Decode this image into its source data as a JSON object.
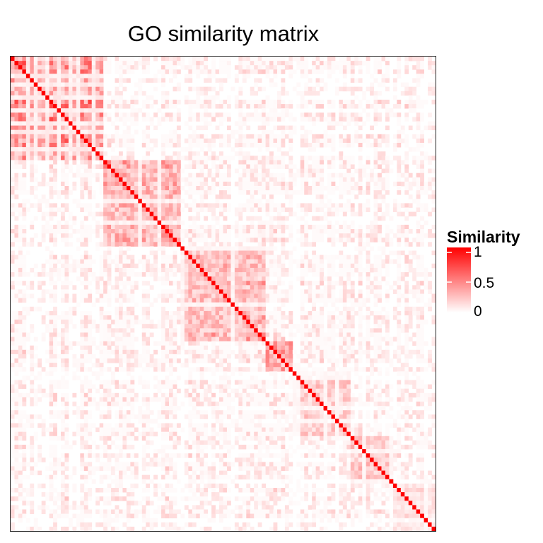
{
  "title": "GO similarity matrix",
  "chart_data": {
    "type": "heatmap",
    "title": "GO similarity matrix",
    "xlabel": "",
    "ylabel": "",
    "value_range": [
      0,
      1
    ],
    "color_low": "#ffffff",
    "color_high": "#ff0000",
    "diagonal_value": 1,
    "clusters": [
      {
        "start": 0.0,
        "end": 0.22,
        "mean_similarity": 0.45
      },
      {
        "start": 0.22,
        "end": 0.4,
        "mean_similarity": 0.35
      },
      {
        "start": 0.4,
        "end": 0.6,
        "mean_similarity": 0.32
      },
      {
        "start": 0.6,
        "end": 0.66,
        "mean_similarity": 0.4
      },
      {
        "start": 0.66,
        "end": 0.8,
        "mean_similarity": 0.22
      },
      {
        "start": 0.8,
        "end": 0.9,
        "mean_similarity": 0.25
      },
      {
        "start": 0.9,
        "end": 1.0,
        "mean_similarity": 0.15
      }
    ],
    "legend": {
      "title": "Similarity",
      "ticks": [
        "1",
        "0.5",
        "0"
      ],
      "tick_values": [
        1,
        0.5,
        0
      ],
      "placement": "right"
    }
  }
}
